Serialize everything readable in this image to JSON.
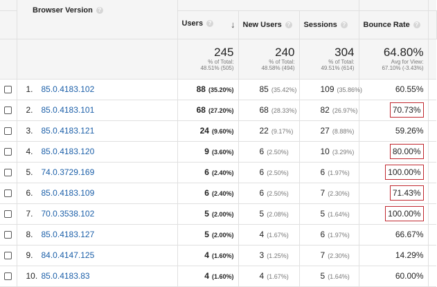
{
  "header": {
    "browser_version": "Browser Version",
    "users": "Users",
    "new_users": "New Users",
    "sessions": "Sessions",
    "bounce_rate": "Bounce Rate",
    "help_glyph": "?",
    "sort_glyph": "↓"
  },
  "totals": {
    "users": {
      "value": "245",
      "sub1": "% of Total:",
      "sub2": "48.51% (505)"
    },
    "new_users": {
      "value": "240",
      "sub1": "% of Total:",
      "sub2": "48.58% (494)"
    },
    "sessions": {
      "value": "304",
      "sub1": "% of Total:",
      "sub2": "49.51% (614)"
    },
    "bounce_rate": {
      "value": "64.80%",
      "sub1": "Avg for View:",
      "sub2": "67.10% (-3.43%)"
    }
  },
  "rows": [
    {
      "index": "1.",
      "browser": "85.0.4183.102",
      "users": "88",
      "users_pct": "(35.20%)",
      "new_users": "85",
      "new_users_pct": "(35.42%)",
      "sessions": "109",
      "sessions_pct": "(35.86%)",
      "bounce": "60.55%",
      "highlighted": false
    },
    {
      "index": "2.",
      "browser": "85.0.4183.101",
      "users": "68",
      "users_pct": "(27.20%)",
      "new_users": "68",
      "new_users_pct": "(28.33%)",
      "sessions": "82",
      "sessions_pct": "(26.97%)",
      "bounce": "70.73%",
      "highlighted": true
    },
    {
      "index": "3.",
      "browser": "85.0.4183.121",
      "users": "24",
      "users_pct": "(9.60%)",
      "new_users": "22",
      "new_users_pct": "(9.17%)",
      "sessions": "27",
      "sessions_pct": "(8.88%)",
      "bounce": "59.26%",
      "highlighted": false
    },
    {
      "index": "4.",
      "browser": "85.0.4183.120",
      "users": "9",
      "users_pct": "(3.60%)",
      "new_users": "6",
      "new_users_pct": "(2.50%)",
      "sessions": "10",
      "sessions_pct": "(3.29%)",
      "bounce": "80.00%",
      "highlighted": true
    },
    {
      "index": "5.",
      "browser": "74.0.3729.169",
      "users": "6",
      "users_pct": "(2.40%)",
      "new_users": "6",
      "new_users_pct": "(2.50%)",
      "sessions": "6",
      "sessions_pct": "(1.97%)",
      "bounce": "100.00%",
      "highlighted": true
    },
    {
      "index": "6.",
      "browser": "85.0.4183.109",
      "users": "6",
      "users_pct": "(2.40%)",
      "new_users": "6",
      "new_users_pct": "(2.50%)",
      "sessions": "7",
      "sessions_pct": "(2.30%)",
      "bounce": "71.43%",
      "highlighted": true
    },
    {
      "index": "7.",
      "browser": "70.0.3538.102",
      "users": "5",
      "users_pct": "(2.00%)",
      "new_users": "5",
      "new_users_pct": "(2.08%)",
      "sessions": "5",
      "sessions_pct": "(1.64%)",
      "bounce": "100.00%",
      "highlighted": true
    },
    {
      "index": "8.",
      "browser": "85.0.4183.127",
      "users": "5",
      "users_pct": "(2.00%)",
      "new_users": "4",
      "new_users_pct": "(1.67%)",
      "sessions": "6",
      "sessions_pct": "(1.97%)",
      "bounce": "66.67%",
      "highlighted": false
    },
    {
      "index": "9.",
      "browser": "84.0.4147.125",
      "users": "4",
      "users_pct": "(1.60%)",
      "new_users": "3",
      "new_users_pct": "(1.25%)",
      "sessions": "7",
      "sessions_pct": "(2.30%)",
      "bounce": "14.29%",
      "highlighted": false
    },
    {
      "index": "10.",
      "browser": "85.0.4183.83",
      "users": "4",
      "users_pct": "(1.60%)",
      "new_users": "4",
      "new_users_pct": "(1.67%)",
      "sessions": "5",
      "sessions_pct": "(1.64%)",
      "bounce": "60.00%",
      "highlighted": false
    }
  ],
  "colors": {
    "link": "#1a5ea8",
    "highlight_border": "#c0262d",
    "header_bg": "#f5f5f5"
  }
}
